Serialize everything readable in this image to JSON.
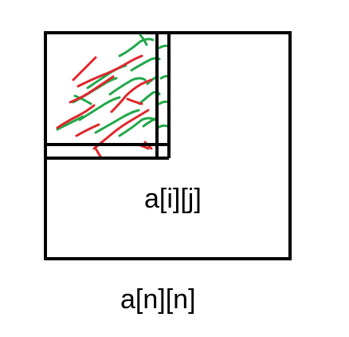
{
  "labels": {
    "inner": "a[i][j]",
    "outer": "a[n][n]"
  },
  "colors": {
    "outline": "#000000",
    "red_hatching": "#e0262b",
    "green_hatching": "#22a84a",
    "background": "#ffffff"
  }
}
